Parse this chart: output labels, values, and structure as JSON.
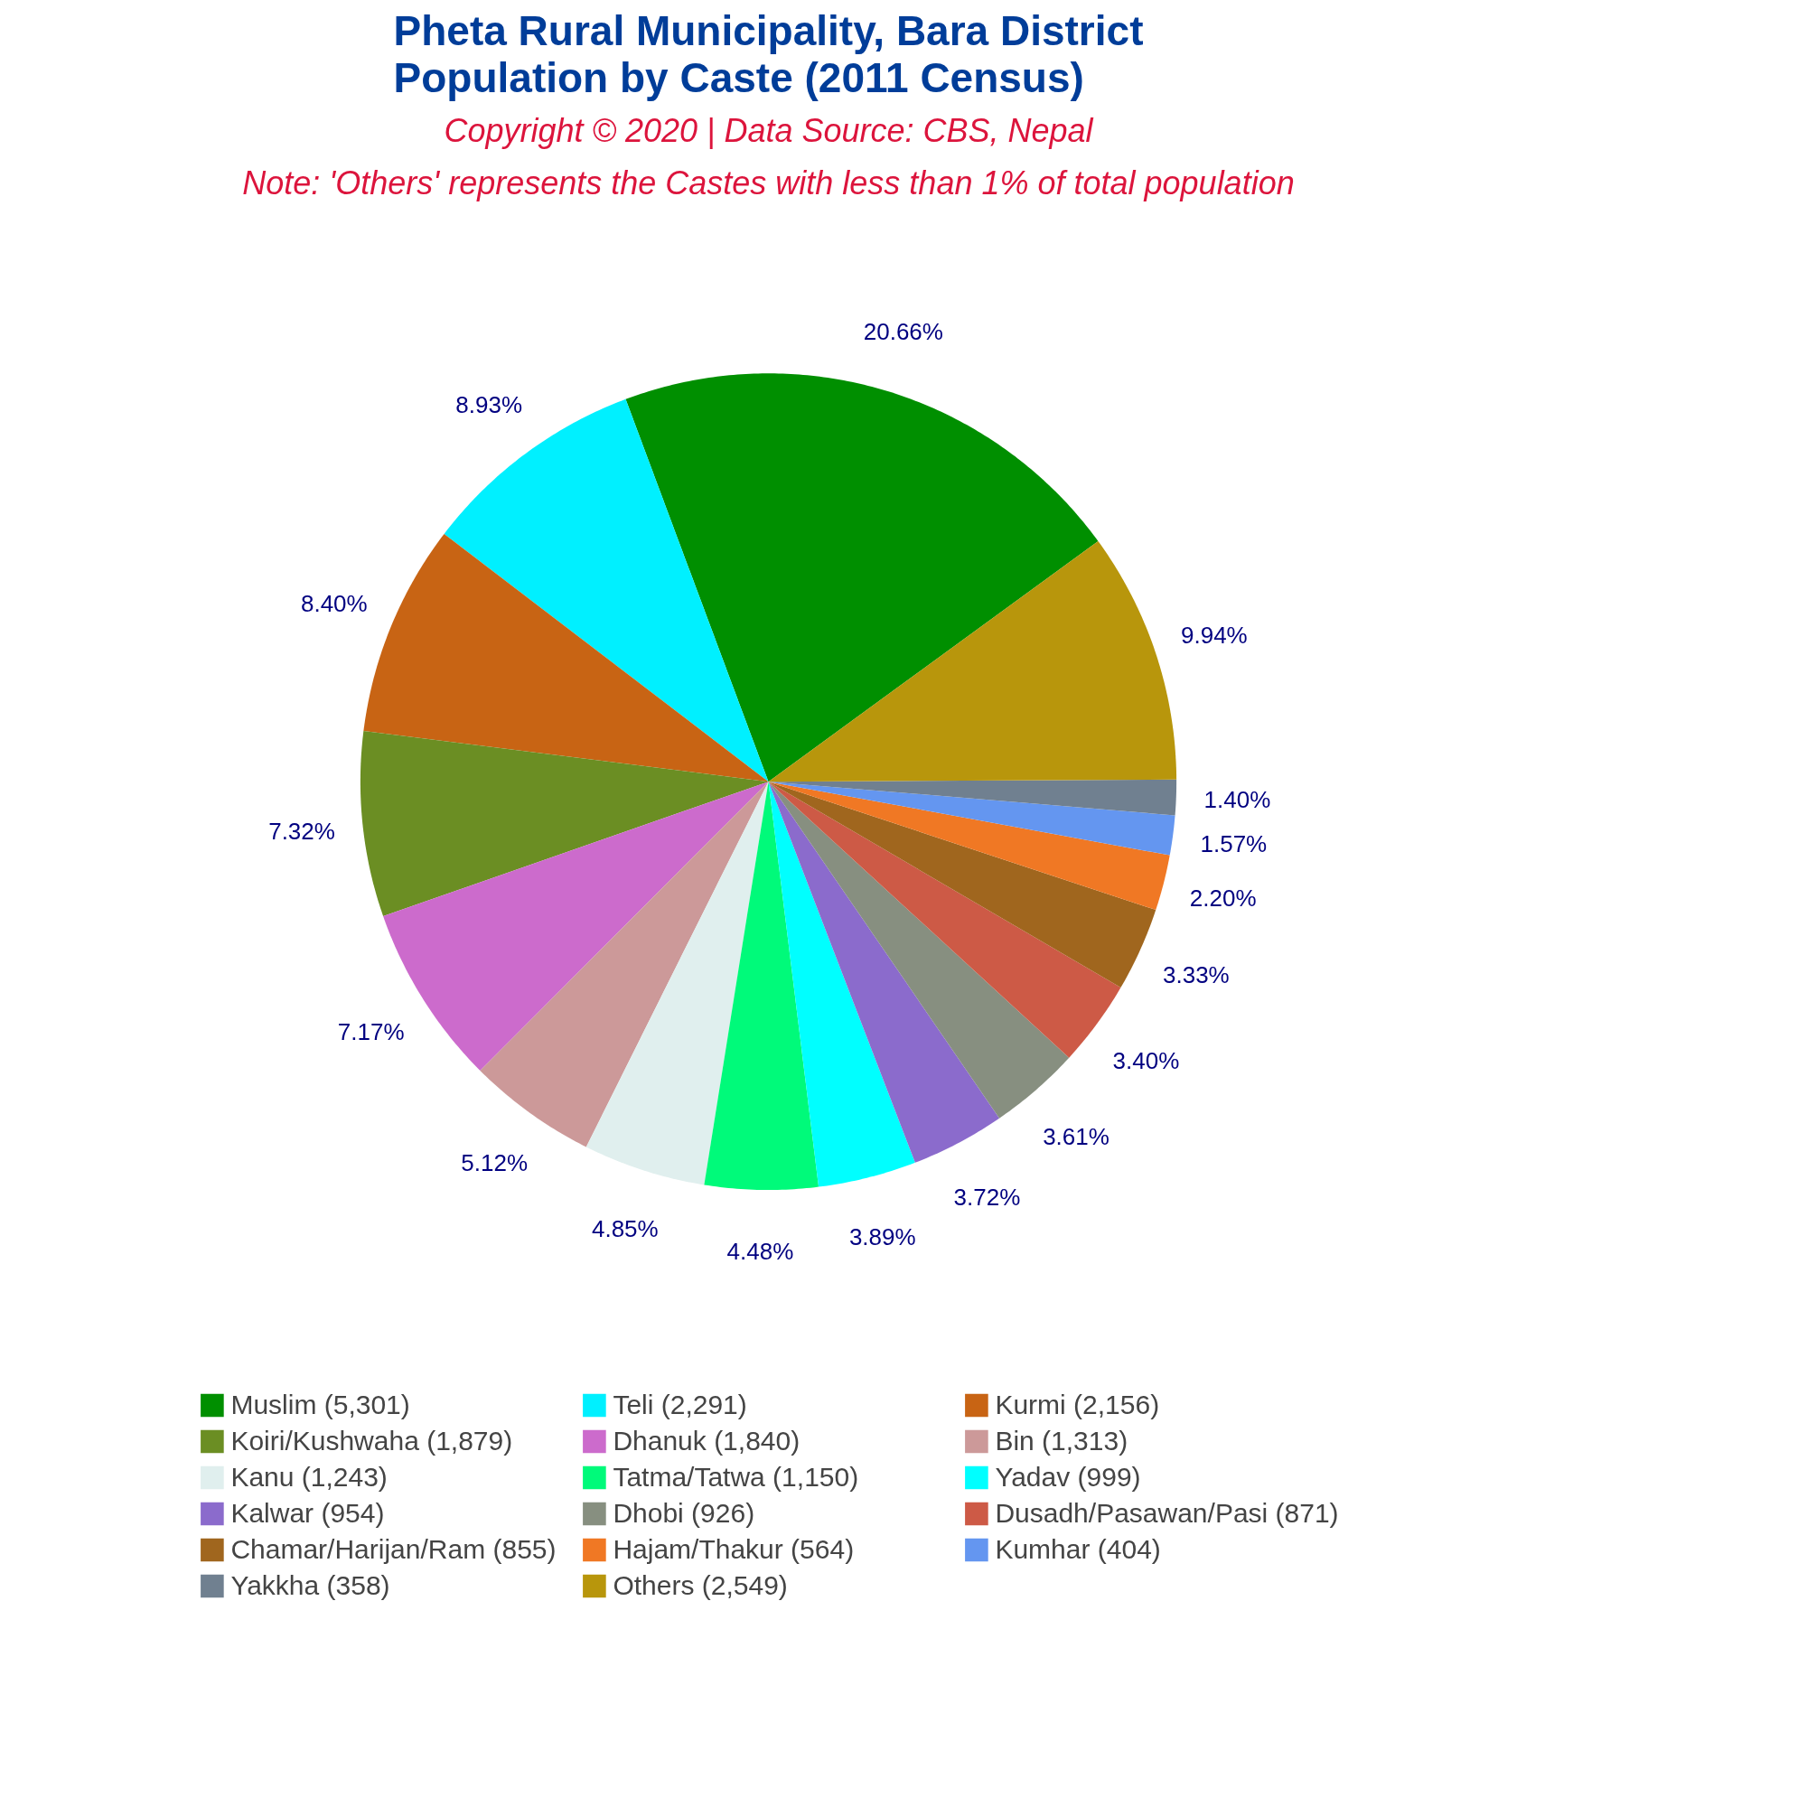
{
  "chart_data": {
    "type": "pie",
    "title": "Pheta Rural Municipality, Bara District\nPopulation by Caste (2011 Census)",
    "subtitle": "Copyright © 2020 | Data Source: CBS, Nepal",
    "annotations": [
      "Note: 'Others' represents the Castes with less than 1% of total population"
    ],
    "categories": [
      "Muslim (5,301)",
      "Teli (2,291)",
      "Kurmi (2,156)",
      "Koiri/Kushwaha (1,879)",
      "Dhanuk (1,840)",
      "Bin (1,313)",
      "Kanu (1,243)",
      "Tatma/Tatwa (1,150)",
      "Yadav (999)",
      "Kalwar (954)",
      "Dhobi (926)",
      "Dusadh/Pasawan/Pasi (871)",
      "Chamar/Harijan/Ram (855)",
      "Hajam/Thakur (564)",
      "Kumhar (404)",
      "Yakkha (358)",
      "Others (2,549)"
    ],
    "values": [
      20.66,
      8.93,
      8.4,
      7.32,
      7.17,
      5.12,
      4.85,
      4.48,
      3.89,
      3.72,
      3.61,
      3.4,
      3.33,
      2.2,
      1.57,
      1.4,
      9.94
    ],
    "value_labels": [
      "20.66%",
      "8.93%",
      "8.40%",
      "7.32%",
      "7.17%",
      "5.12%",
      "4.85%",
      "4.48%",
      "3.89%",
      "3.72%",
      "3.61%",
      "3.40%",
      "3.33%",
      "2.20%",
      "1.57%",
      "1.40%",
      "9.94%"
    ],
    "colors": [
      "#008f00",
      "#00f0ff",
      "#c86414",
      "#6b8e23",
      "#cc6bcc",
      "#cc9999",
      "#e0efee",
      "#00fa7a",
      "#00ffff",
      "#8b6bcc",
      "#878f80",
      "#cd5a46",
      "#a0661e",
      "#f07824",
      "#6496f0",
      "#708090",
      "#b8960c"
    ],
    "legend": "bottom"
  }
}
